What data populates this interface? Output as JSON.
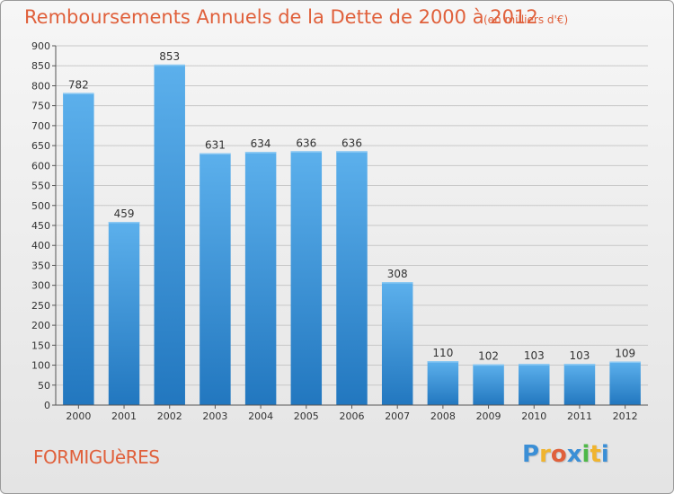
{
  "header": {
    "title": "Remboursements Annuels de la Dette de 2000 à 2012",
    "subtitle": "(en milliers d'€)"
  },
  "footer": {
    "commune": "FORMIGUèRES",
    "logo": {
      "text": "Proxiti",
      "letters": [
        "P",
        "r",
        "o",
        "x",
        "i",
        "t",
        "i"
      ],
      "colors": [
        "#3b8fd6",
        "#f0b42e",
        "#e0603b",
        "#3b8fd6",
        "#4fb848",
        "#f0b42e",
        "#3b8fd6"
      ]
    }
  },
  "colors": {
    "title": "#e0603b",
    "bar_top": "#5cb0ec",
    "bar_bottom": "#2277bf",
    "grid": "#c8c8c8",
    "axis": "#555555"
  },
  "chart_data": {
    "type": "bar",
    "title": "Remboursements Annuels de la Dette de 2000 à 2012",
    "subtitle": "(en milliers d'€)",
    "categories": [
      "2000",
      "2001",
      "2002",
      "2003",
      "2004",
      "2005",
      "2006",
      "2007",
      "2008",
      "2009",
      "2010",
      "2011",
      "2012"
    ],
    "values": [
      782,
      459,
      853,
      631,
      634,
      636,
      636,
      308,
      110,
      102,
      103,
      103,
      109
    ],
    "data_labels": [
      "782",
      "459",
      "853",
      "631",
      "634",
      "636",
      "636",
      "308",
      "110",
      "102",
      "103",
      "103",
      "109"
    ],
    "ylim": [
      0,
      900
    ],
    "yticks": [
      0,
      50,
      100,
      150,
      200,
      250,
      300,
      350,
      400,
      450,
      500,
      550,
      600,
      650,
      700,
      750,
      800,
      850,
      900
    ],
    "grid": true,
    "xlabel": "",
    "ylabel": ""
  }
}
